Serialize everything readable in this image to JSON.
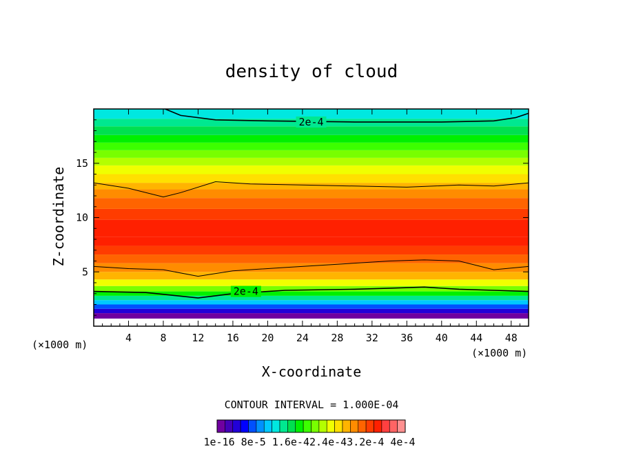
{
  "chart_data": {
    "type": "heatmap",
    "title": "density of cloud",
    "xlabel": "X-coordinate",
    "ylabel": "Z-coordinate",
    "x_unit_left": "(×1000 m)",
    "x_unit_right": "(×1000 m)",
    "xlim": [
      0,
      50
    ],
    "ylim": [
      0,
      20
    ],
    "xticks": [
      "4",
      "8",
      "12",
      "16",
      "20",
      "24",
      "28",
      "32",
      "36",
      "40",
      "44",
      "48"
    ],
    "yticks": [
      "5",
      "10",
      "15"
    ],
    "contour_interval_label": "CONTOUR INTERVAL = 1.000E-04",
    "contour_labels": [
      "2e-4",
      "2e-4"
    ],
    "colorbar_ticks": [
      "1e-16",
      "8e-5",
      "1.6e-4",
      "2.4e-4",
      "3.2e-4",
      "4e-4"
    ],
    "colorbar_tick_text": "1e-16 8e-5 1.6e-42.4e-43.2e-4 4e-4",
    "value_range": [
      1e-16,
      0.0004
    ],
    "colorbar_colors": [
      "#7000a0",
      "#4400b8",
      "#2200d8",
      "#0000ff",
      "#0050ff",
      "#0090ff",
      "#00c8ff",
      "#00e8e0",
      "#00e890",
      "#00e050",
      "#00f000",
      "#3cff00",
      "#78ff00",
      "#b4ff00",
      "#f0ff00",
      "#ffe000",
      "#ffb400",
      "#ff8c00",
      "#ff6400",
      "#ff3c00",
      "#ff2000",
      "#ff4040",
      "#ff6464",
      "#ff9090"
    ],
    "vertical_profile": [
      {
        "z": 0.7,
        "level": -1
      },
      {
        "z": 1.2,
        "level": 0
      },
      {
        "z": 1.6,
        "level": 2
      },
      {
        "z": 2.0,
        "level": 4
      },
      {
        "z": 2.4,
        "level": 6
      },
      {
        "z": 2.8,
        "level": 8
      },
      {
        "z": 3.2,
        "level": 10
      },
      {
        "z": 3.7,
        "level": 12
      },
      {
        "z": 4.3,
        "level": 14
      },
      {
        "z": 5.0,
        "level": 16
      },
      {
        "z": 5.8,
        "level": 17
      },
      {
        "z": 6.6,
        "level": 18
      },
      {
        "z": 7.4,
        "level": 19
      },
      {
        "z": 8.2,
        "level": 20
      },
      {
        "z": 9.8,
        "level": 20
      },
      {
        "z": 10.8,
        "level": 19
      },
      {
        "z": 11.8,
        "level": 18
      },
      {
        "z": 12.6,
        "level": 17
      },
      {
        "z": 13.2,
        "level": 16
      },
      {
        "z": 14.0,
        "level": 15
      },
      {
        "z": 14.8,
        "level": 14
      },
      {
        "z": 15.5,
        "level": 13
      },
      {
        "z": 16.2,
        "level": 12
      },
      {
        "z": 16.9,
        "level": 11
      },
      {
        "z": 17.6,
        "level": 10
      },
      {
        "z": 18.4,
        "level": 9
      },
      {
        "z": 19.1,
        "level": 8
      },
      {
        "z": 20.0,
        "level": 7
      }
    ],
    "contour_2e4_lower": [
      [
        0,
        3.2
      ],
      [
        6,
        3.1
      ],
      [
        12,
        2.6
      ],
      [
        16,
        3.0
      ],
      [
        22,
        3.3
      ],
      [
        30,
        3.4
      ],
      [
        34,
        3.5
      ],
      [
        38,
        3.6
      ],
      [
        42,
        3.4
      ],
      [
        46,
        3.3
      ],
      [
        50,
        3.2
      ]
    ],
    "contour_2e4_mid": [
      [
        0,
        5.5
      ],
      [
        4,
        5.3
      ],
      [
        8,
        5.2
      ],
      [
        12,
        4.6
      ],
      [
        16,
        5.1
      ],
      [
        22,
        5.4
      ],
      [
        28,
        5.7
      ],
      [
        34,
        6.0
      ],
      [
        38,
        6.1
      ],
      [
        42,
        6.0
      ],
      [
        46,
        5.2
      ],
      [
        50,
        5.5
      ]
    ],
    "contour_upper": [
      [
        0,
        13.2
      ],
      [
        4,
        12.7
      ],
      [
        8,
        11.9
      ],
      [
        10,
        12.3
      ],
      [
        14,
        13.3
      ],
      [
        18,
        13.1
      ],
      [
        24,
        13.0
      ],
      [
        30,
        12.9
      ],
      [
        36,
        12.8
      ],
      [
        42,
        13.0
      ],
      [
        46,
        12.9
      ],
      [
        50,
        13.2
      ]
    ],
    "contour_2e4_top": [
      [
        8.2,
        20
      ],
      [
        10,
        19.4
      ],
      [
        14,
        19.0
      ],
      [
        20,
        18.9
      ],
      [
        30,
        18.8
      ],
      [
        40,
        18.8
      ],
      [
        46,
        18.9
      ],
      [
        48.5,
        19.2
      ],
      [
        50,
        19.6
      ]
    ]
  }
}
